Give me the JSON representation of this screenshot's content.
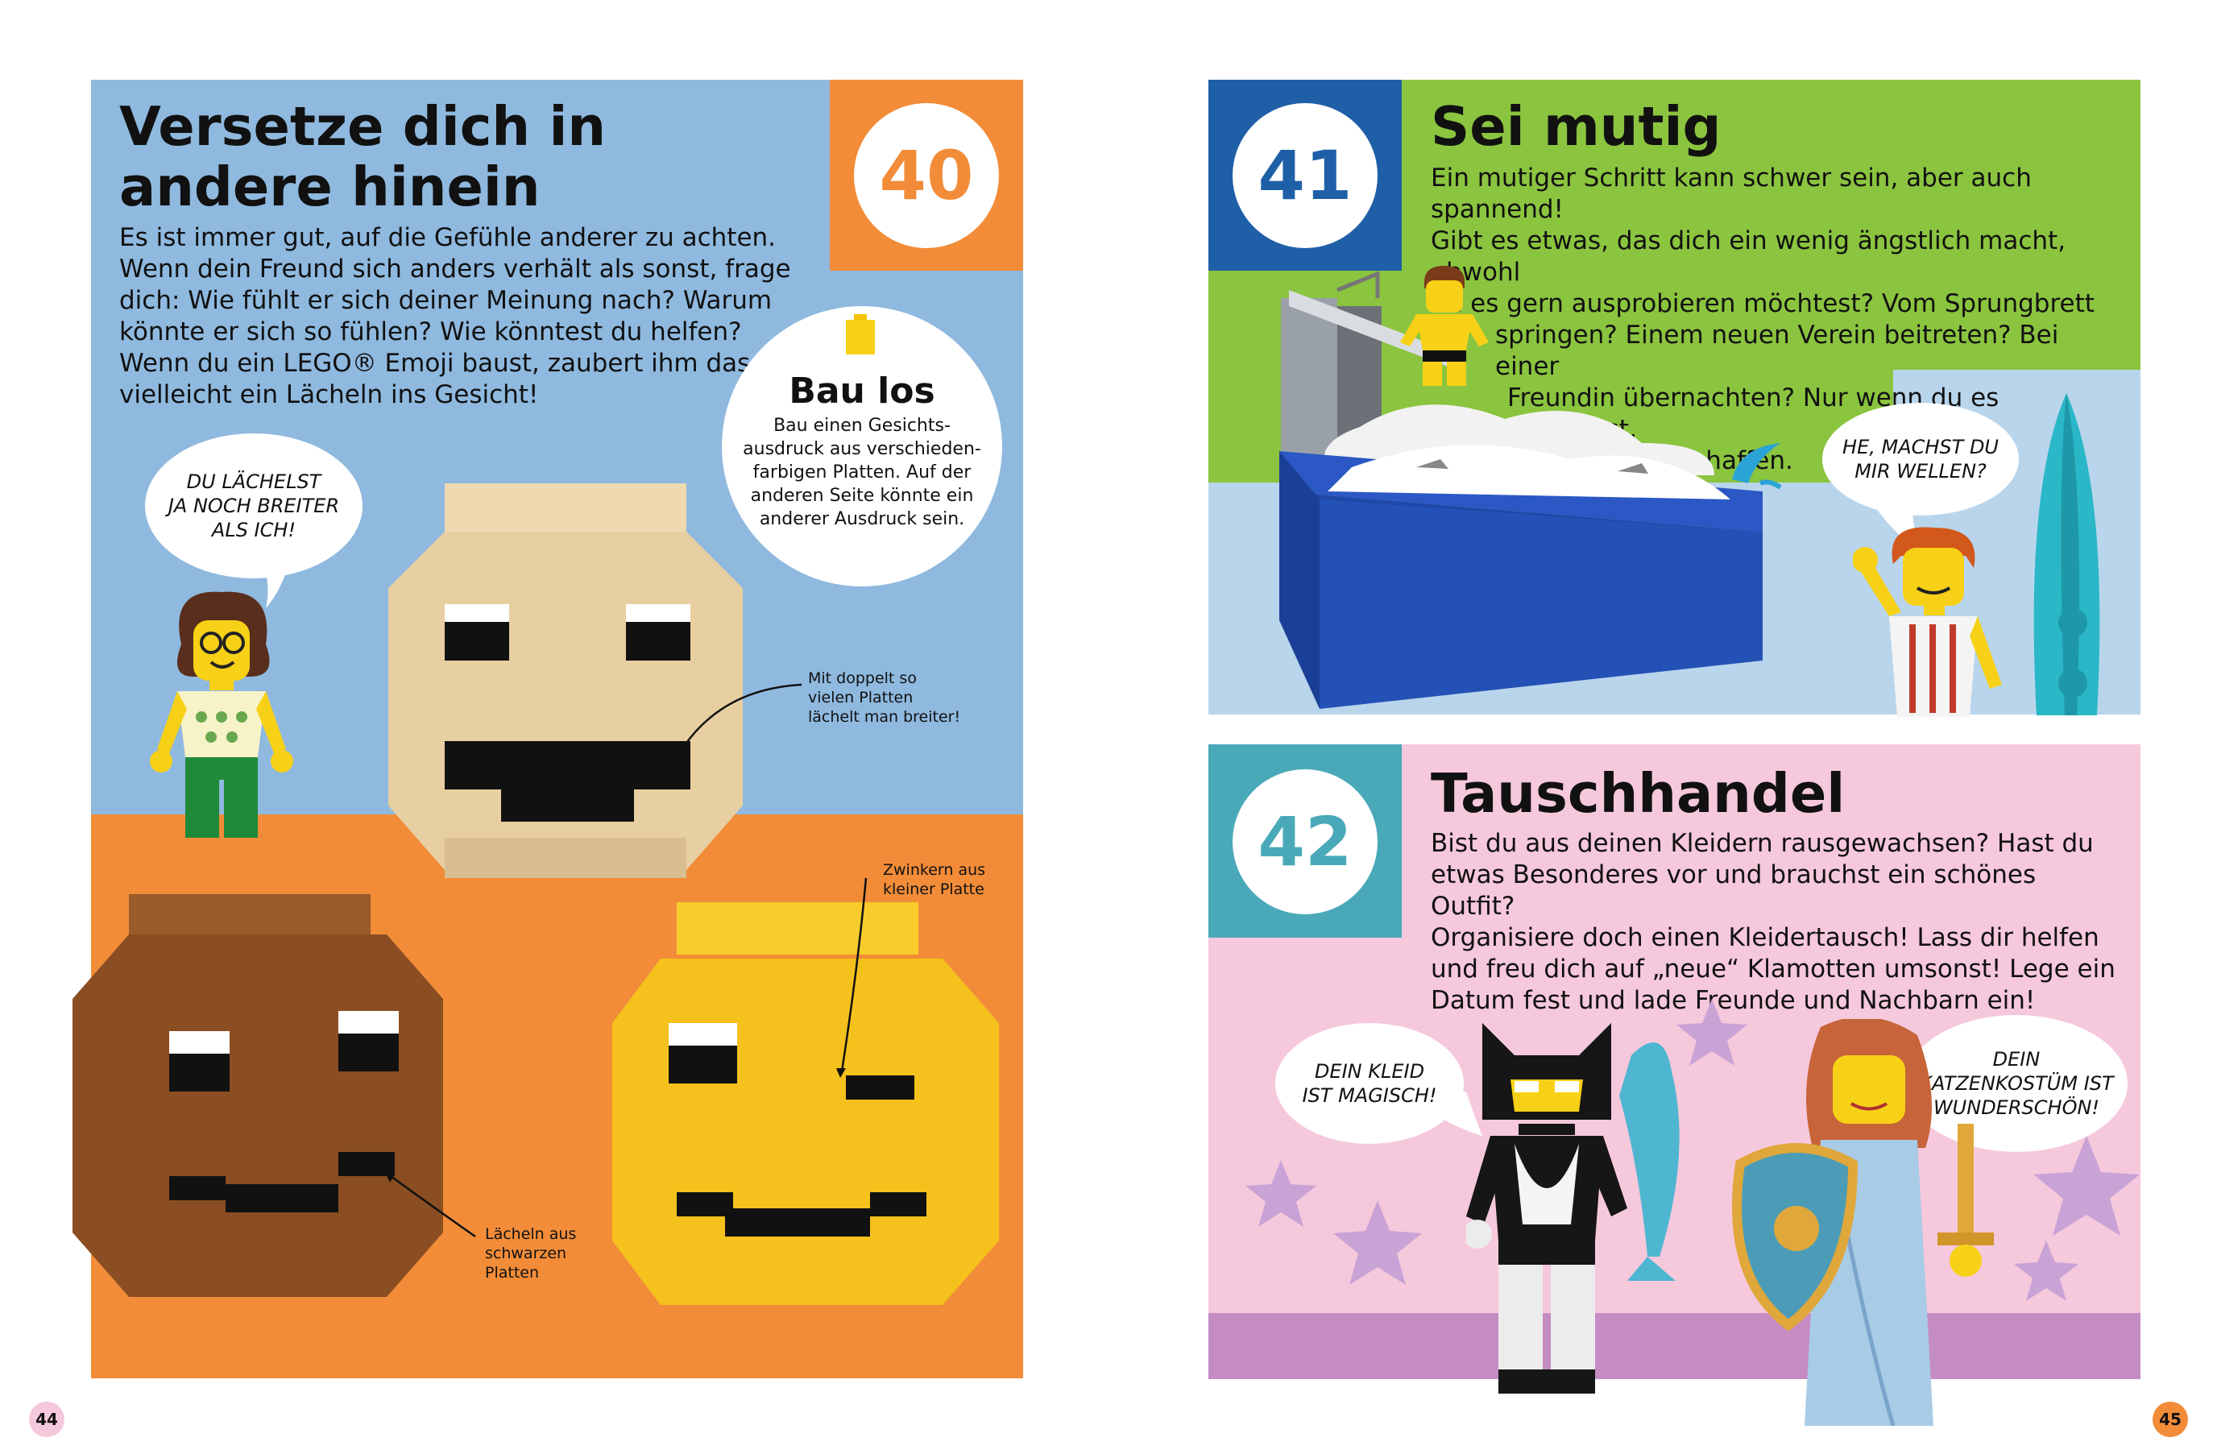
{
  "left_page": {
    "number": "40",
    "title_line1": "Versetze dich in",
    "title_line2": "andere hinein",
    "body": [
      "Es ist immer gut, auf die Gefühle anderer zu achten.",
      "Wenn dein Freund sich anders verhält als sonst, frage",
      "dich: Wie fühlt er sich deiner Meinung nach? Warum",
      "könnte er sich so fühlen? Wie könntest du helfen?",
      "Wenn du ein LEGO® Emoji baust, zaubert ihm das",
      "vielleicht ein Lächeln ins Gesicht!"
    ],
    "build_tip": {
      "title": "Bau los",
      "lines": [
        "Bau einen Gesichts-",
        "ausdruck aus verschieden-",
        "farbigen Platten. Auf der",
        "anderen Seite könnte ein",
        "anderer Ausdruck sein."
      ]
    },
    "speech_bubble": [
      "DU LÄCHELST",
      "JA NOCH BREITER",
      "ALS ICH!"
    ],
    "annotations": {
      "wide_smile": [
        "Mit doppelt so",
        "vielen Platten",
        "lächelt man breiter!"
      ],
      "wink": [
        "Zwinkern aus",
        "kleiner Platte"
      ],
      "smile": [
        "Lächeln aus",
        "schwarzen",
        "Platten"
      ]
    },
    "page_number": "44"
  },
  "right_top": {
    "number": "41",
    "title": "Sei mutig",
    "body": [
      "Ein mutiger Schritt kann schwer sein, aber auch spannend!",
      "Gibt es etwas, das dich ein wenig ängstlich macht, obwohl",
      "du es gern ausprobieren möchtest? Vom Sprungbrett",
      "springen? Einem neuen Verein beitreten? Bei einer",
      "Freundin übernachten? Nur wenn du es versuchst,",
      "kannst du es schaffen."
    ],
    "speech_bubble": [
      "HE, MACHST DU",
      "MIR WELLEN?"
    ]
  },
  "right_bottom": {
    "number": "42",
    "title": "Tauschhandel",
    "body": [
      "Bist du aus deinen Kleidern rausgewachsen? Hast du",
      "etwas Besonderes vor und brauchst ein schönes Outfit?",
      "Organisiere doch einen Kleidertausch! Lass dir helfen",
      "und freu dich auf „neue“ Klamotten umsonst! Lege ein",
      "Datum fest und lade Freunde und Nachbarn ein!"
    ],
    "speech_left": [
      "DEIN KLEID",
      "IST MAGISCH!"
    ],
    "speech_right": [
      "DEIN",
      "KATZENKOSTÜM IST",
      "WUNDERSCHÖN!"
    ],
    "page_number": "45"
  },
  "colors": {
    "blue_bg": "#8fb9df",
    "orange": "#f28c38",
    "green": "#8bc43f",
    "dark_blue": "#1f5fa8",
    "pink": "#f6c8dc",
    "teal": "#4aa9b9",
    "purple_floor": "#c58cc4"
  }
}
